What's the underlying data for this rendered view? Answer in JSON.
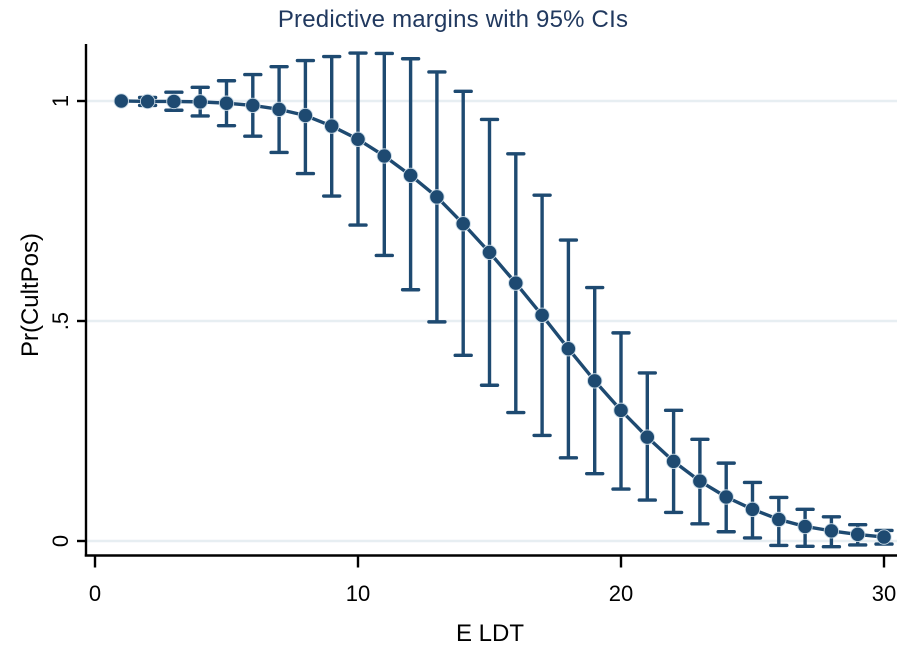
{
  "chart_data": {
    "type": "line",
    "title": "Predictive margins with 95% CIs",
    "xlabel": "E LDT",
    "ylabel": "Pr(CultPos)",
    "legend": "none",
    "grid": "horizontal",
    "error_bars": "95% confidence intervals with caps",
    "x_ticks": [
      0,
      10,
      20,
      30
    ],
    "y_ticks": [
      {
        "value": 0,
        "label": "0"
      },
      {
        "value": 0.5,
        "label": ".5"
      },
      {
        "value": 1,
        "label": "1"
      }
    ],
    "xlim": [
      -0.35,
      30.85
    ],
    "ylim": [
      -0.045,
      1.13
    ],
    "series": [
      {
        "name": "Predictive margin",
        "x": [
          1,
          2,
          3,
          4,
          5,
          6,
          7,
          8,
          9,
          10,
          11,
          12,
          13,
          14,
          15,
          16,
          17,
          18,
          19,
          20,
          21,
          22,
          23,
          24,
          25,
          26,
          27,
          28,
          29,
          30
        ],
        "pr": [
          1.0,
          0.999,
          0.999,
          0.998,
          0.995,
          0.99,
          0.981,
          0.967,
          0.943,
          0.913,
          0.875,
          0.831,
          0.782,
          0.721,
          0.656,
          0.586,
          0.513,
          0.437,
          0.364,
          0.297,
          0.236,
          0.181,
          0.136,
          0.1,
          0.072,
          0.049,
          0.033,
          0.023,
          0.015,
          0.009
        ],
        "ci_low": [
          1.0,
          0.99,
          0.979,
          0.966,
          0.944,
          0.92,
          0.883,
          0.835,
          0.784,
          0.718,
          0.649,
          0.571,
          0.498,
          0.422,
          0.354,
          0.292,
          0.24,
          0.189,
          0.153,
          0.118,
          0.093,
          0.065,
          0.039,
          0.021,
          0.007,
          -0.01,
          -0.012,
          -0.013,
          -0.009,
          -0.007
        ],
        "ci_high": [
          1.0,
          1.008,
          1.02,
          1.031,
          1.046,
          1.06,
          1.078,
          1.092,
          1.101,
          1.109,
          1.108,
          1.096,
          1.066,
          1.022,
          0.958,
          0.88,
          0.786,
          0.684,
          0.576,
          0.473,
          0.382,
          0.297,
          0.231,
          0.177,
          0.133,
          0.099,
          0.072,
          0.055,
          0.037,
          0.024
        ]
      }
    ],
    "colors": {
      "marker": "#1e4a71",
      "line": "#1e4a71",
      "error_bar": "#1e4a71",
      "grid_line": "#e7eef2",
      "axis": "#000000",
      "title": "#21395f",
      "tick_label": "#000000",
      "background": "#ffffff"
    }
  }
}
